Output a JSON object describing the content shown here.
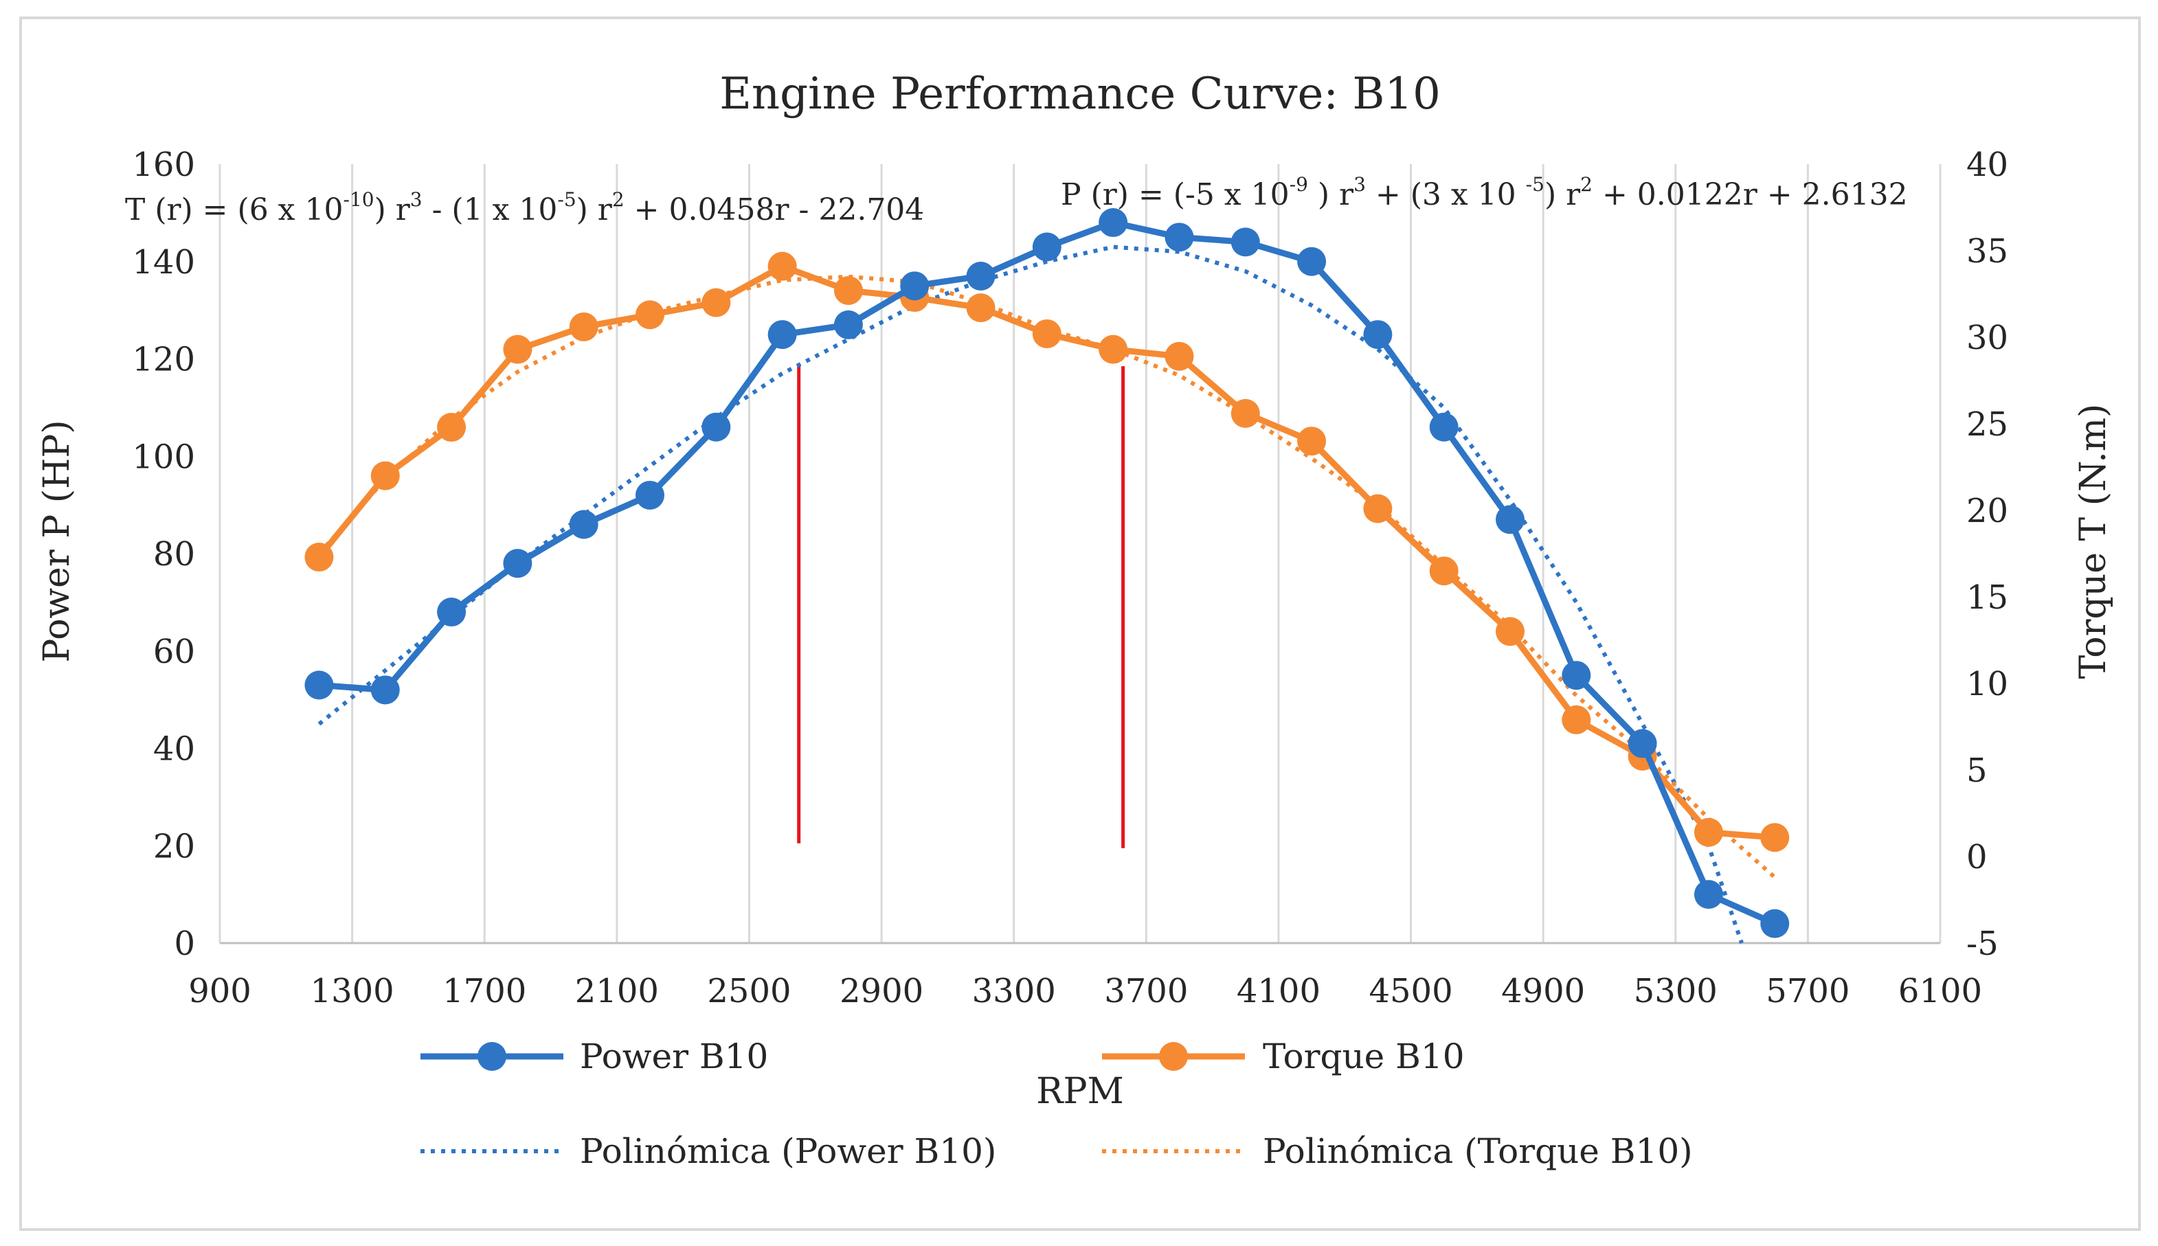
{
  "chart_data": {
    "type": "line",
    "title": "Engine Performance Curve: B10",
    "xlabel": "RPM",
    "ylabel_left": "Power P (HP)",
    "ylabel_right": "Torque T (N.m)",
    "xlim": [
      900,
      6100
    ],
    "x_ticks": [
      900,
      1300,
      1700,
      2100,
      2500,
      2900,
      3300,
      3700,
      4100,
      4500,
      4900,
      5300,
      5700,
      6100
    ],
    "ylim_left": [
      0,
      160
    ],
    "y_left_ticks": [
      0,
      20,
      40,
      60,
      80,
      100,
      120,
      140,
      160
    ],
    "ylim_right": [
      -5,
      40
    ],
    "y_right_ticks": [
      -5,
      0,
      5,
      10,
      15,
      20,
      25,
      30,
      35,
      40
    ],
    "grid": "vertical",
    "legend_placement": "bottom",
    "series": [
      {
        "name": "Power B10",
        "axis": "left",
        "color": "#2E75C6",
        "x": [
          1200,
          1400,
          1600,
          1800,
          2000,
          2200,
          2400,
          2600,
          2800,
          3000,
          3200,
          3400,
          3600,
          3800,
          4000,
          4200,
          4400,
          4600,
          4800,
          5000,
          5200,
          5400,
          5600
        ],
        "values": [
          53,
          52,
          68,
          78,
          86,
          92,
          106,
          125,
          127,
          135,
          137,
          143,
          148,
          145,
          144,
          140,
          125,
          106,
          87,
          55,
          41,
          10,
          4
        ]
      },
      {
        "name": "Torque B10",
        "axis": "right",
        "color": "#F58A33",
        "x": [
          1200,
          1400,
          1600,
          1800,
          2000,
          2200,
          2400,
          2600,
          2800,
          3000,
          3200,
          3400,
          3600,
          3800,
          4000,
          4200,
          4400,
          4600,
          4800,
          5000,
          5200,
          5400,
          5600
        ],
        "values": [
          17.3,
          22,
          24.8,
          29.3,
          30.6,
          31.3,
          32,
          34.1,
          32.7,
          32.3,
          31.7,
          30.2,
          29.3,
          28.9,
          25.6,
          24,
          20.1,
          16.5,
          13,
          7.9,
          5.8,
          1.4,
          1.1
        ]
      }
    ],
    "trendlines": [
      {
        "name": "Polinómica (Power B10)",
        "axis": "left",
        "color": "#2E75C6",
        "style": "dotted",
        "x": [
          1200,
          1400,
          1600,
          1800,
          2000,
          2200,
          2400,
          2600,
          2800,
          3000,
          3200,
          3400,
          3600,
          3800,
          4000,
          4200,
          4400,
          4600,
          4800,
          5000,
          5200,
          5400,
          5500
        ],
        "values": [
          45,
          56,
          67,
          78,
          88,
          98,
          108,
          117,
          124,
          131,
          136,
          140,
          143,
          142,
          138,
          131,
          122,
          110,
          91,
          70,
          45,
          20,
          0
        ]
      },
      {
        "name": "Polinómica (Torque B10)",
        "axis": "right",
        "color": "#F58A33",
        "style": "dotted",
        "x": [
          1200,
          1400,
          1600,
          1800,
          2000,
          2200,
          2400,
          2600,
          2800,
          3000,
          3200,
          3400,
          3600,
          3800,
          4000,
          4200,
          4400,
          4600,
          4800,
          5000,
          5200,
          5400,
          5600
        ],
        "values": [
          17.5,
          21.8,
          25.3,
          28,
          30,
          31.4,
          32.4,
          33.3,
          33.5,
          33.2,
          32,
          30.5,
          29.3,
          27.8,
          25.5,
          23,
          20.3,
          16.8,
          13.3,
          9.3,
          6,
          2.2,
          -1.2
        ]
      }
    ],
    "vertical_markers": [
      {
        "x": 2650,
        "color": "#E8141B",
        "y_top_left": 119,
        "y_bottom_left": 20.5
      },
      {
        "x": 3630,
        "color": "#E8141B",
        "y_top_left": 118.5,
        "y_bottom_left": 19.5
      }
    ],
    "equations": {
      "torque": {
        "parts": [
          "T (r) = (6 x 10",
          "-10",
          ") r",
          "3",
          " - (1 x 10",
          "-5",
          ") r",
          "2",
          " + 0.0458r - 22.704"
        ]
      },
      "power": {
        "parts": [
          "P (r) = (-5 x 10",
          "-9",
          " ) r",
          "3",
          " + (3 x 10 ",
          "-5",
          ") r",
          "2",
          " + 0.0122r + 2.6132"
        ]
      }
    }
  }
}
